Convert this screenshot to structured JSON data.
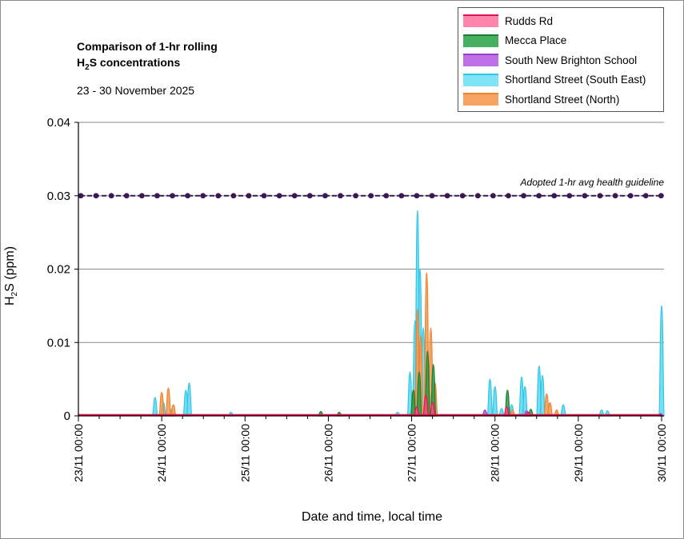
{
  "chart_data": {
    "type": "area",
    "title_line1": "Comparison of 1-hr rolling",
    "title_line2_prefix": "H",
    "title_line2_sub": "2",
    "title_line2_suffix": "S concentrations",
    "subtitle": "23 - 30 November 2025",
    "ylabel_prefix": "H",
    "ylabel_sub": "2",
    "ylabel_suffix": "S (ppm)",
    "xlabel": "Date and time, local time",
    "ylim": [
      0,
      0.04
    ],
    "y_ticks": [
      {
        "v": 0,
        "label": "0"
      },
      {
        "v": 0.01,
        "label": "0.01"
      },
      {
        "v": 0.02,
        "label": "0.02"
      },
      {
        "v": 0.03,
        "label": "0.03"
      },
      {
        "v": 0.04,
        "label": "0.04"
      }
    ],
    "x_range_days": [
      0,
      7
    ],
    "x_ticks": [
      {
        "d": 0,
        "label": "23/11 00:00"
      },
      {
        "d": 1,
        "label": "24/11 00:00"
      },
      {
        "d": 2,
        "label": "25/11 00:00"
      },
      {
        "d": 3,
        "label": "26/11 00:00"
      },
      {
        "d": 4,
        "label": "27/11 00:00"
      },
      {
        "d": 5,
        "label": "28/11 00:00"
      },
      {
        "d": 6,
        "label": "29/11 00:00"
      },
      {
        "d": 7,
        "label": "30/11 00:00"
      }
    ],
    "guideline": {
      "value": 0.03,
      "label": "Adopted 1-hr avg health guideline",
      "color": "#3b1a52"
    },
    "grid": true,
    "legend_position": "top-right",
    "series": [
      {
        "name": "Shortland Street (South East)",
        "fill": "#5fd8f0",
        "stroke": "#2ec6e8",
        "peaks": [
          [
            0.92,
            0.0025
          ],
          [
            1.02,
            0.0018
          ],
          [
            1.12,
            0.0009
          ],
          [
            1.29,
            0.0035
          ],
          [
            1.33,
            0.0045
          ],
          [
            1.83,
            0.0005
          ],
          [
            3.83,
            0.0005
          ],
          [
            3.98,
            0.006
          ],
          [
            4.04,
            0.013
          ],
          [
            4.07,
            0.028
          ],
          [
            4.1,
            0.02
          ],
          [
            4.14,
            0.012
          ],
          [
            4.24,
            0.003
          ],
          [
            4.94,
            0.005
          ],
          [
            5.0,
            0.004
          ],
          [
            5.08,
            0.001
          ],
          [
            5.2,
            0.0015
          ],
          [
            5.32,
            0.0053
          ],
          [
            5.36,
            0.004
          ],
          [
            5.53,
            0.0068
          ],
          [
            5.57,
            0.0055
          ],
          [
            5.82,
            0.0015
          ],
          [
            6.28,
            0.0008
          ],
          [
            6.35,
            0.0007
          ],
          [
            7.0,
            0.015
          ]
        ]
      },
      {
        "name": "Shortland Street (North)",
        "fill": "#f59a4f",
        "stroke": "#ee8430",
        "peaks": [
          [
            1.0,
            0.0032
          ],
          [
            1.08,
            0.0038
          ],
          [
            1.14,
            0.0015
          ],
          [
            4.03,
            0.0035
          ],
          [
            4.07,
            0.0145
          ],
          [
            4.11,
            0.011
          ],
          [
            4.18,
            0.0195
          ],
          [
            4.23,
            0.012
          ],
          [
            4.28,
            0.0045
          ],
          [
            5.62,
            0.003
          ],
          [
            5.66,
            0.0018
          ],
          [
            5.74,
            0.0008
          ],
          [
            5.21,
            0.0008
          ]
        ]
      },
      {
        "name": "Mecca Place",
        "fill": "#2e9a4a",
        "stroke": "#1c7d35",
        "peaks": [
          [
            2.91,
            0.0006
          ],
          [
            3.13,
            0.0005
          ],
          [
            4.02,
            0.0035
          ],
          [
            4.09,
            0.006
          ],
          [
            4.19,
            0.0088
          ],
          [
            4.26,
            0.007
          ],
          [
            5.15,
            0.0035
          ],
          [
            5.43,
            0.0009
          ]
        ]
      },
      {
        "name": "South New Brighton School",
        "fill": "#b45be0",
        "stroke": "#9a40c8",
        "peaks": [
          [
            4.88,
            0.0008
          ],
          [
            5.38,
            0.0007
          ],
          [
            6.99,
            0.0003
          ]
        ]
      },
      {
        "name": "Rudds Rd",
        "fill": "#ff4f86",
        "stroke": "#e8114f",
        "peaks": [
          [
            4.06,
            0.0012
          ],
          [
            4.17,
            0.0028
          ],
          [
            4.25,
            0.0018
          ],
          [
            5.14,
            0.0012
          ],
          [
            5.4,
            0.0005
          ]
        ]
      }
    ],
    "legend": [
      {
        "label": "Rudds Rd",
        "fill": "#ff85ab",
        "edge": "#e8114f"
      },
      {
        "label": "Mecca Place",
        "fill": "#44b060",
        "edge": "#1c7d35"
      },
      {
        "label": "South New Brighton School",
        "fill": "#c070e6",
        "edge": "#9a40c8"
      },
      {
        "label": "Shortland Street (South East)",
        "fill": "#7ee3f5",
        "edge": "#2ec6e8"
      },
      {
        "label": "Shortland Street (North)",
        "fill": "#f7a463",
        "edge": "#ee8430"
      }
    ]
  }
}
